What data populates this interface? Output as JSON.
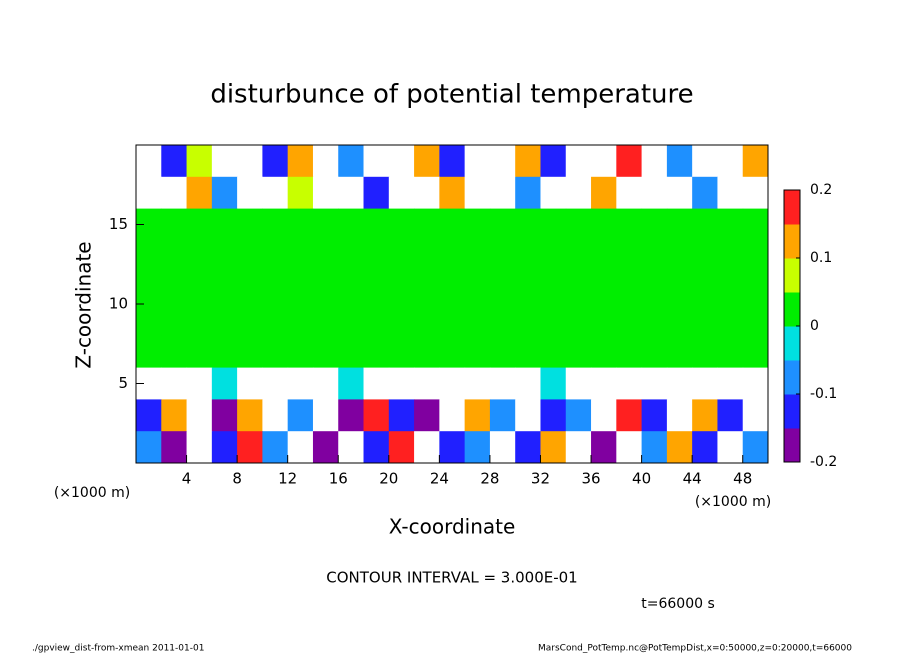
{
  "chart_data": {
    "type": "heatmap",
    "title": "disturbunce of potential temperature",
    "x_label": "X-coordinate",
    "y_label": "Z-coordinate",
    "x_unit": "(×1000 m)",
    "y_unit": "(×1000 m)",
    "xlim": [
      0,
      50
    ],
    "ylim": [
      0,
      20
    ],
    "xticks": [
      4,
      8,
      12,
      16,
      20,
      24,
      28,
      32,
      36,
      40,
      44,
      48
    ],
    "yticks": [
      5,
      10,
      15
    ],
    "x": [
      1,
      3,
      5,
      7,
      9,
      11,
      13,
      15,
      17,
      19,
      21,
      23,
      25,
      27,
      29,
      31,
      33,
      35,
      37,
      39,
      41,
      43,
      45,
      47,
      49
    ],
    "y": [
      19,
      17,
      15,
      13,
      11,
      9,
      7,
      5,
      3,
      1
    ],
    "z": [
      [
        0.3,
        -0.12,
        0.08,
        0.3,
        0.3,
        -0.15,
        0.12,
        0.3,
        -0.1,
        0.3,
        0.3,
        0.15,
        -0.12,
        0.3,
        0.3,
        0.1,
        -0.15,
        0.3,
        0.3,
        0.2,
        0.3,
        -0.1,
        0.3,
        0.3,
        0.12
      ],
      [
        0.3,
        0.3,
        0.15,
        -0.1,
        0.3,
        0.3,
        0.05,
        0.3,
        0.3,
        -0.12,
        0.3,
        0.3,
        0.1,
        0.3,
        0.3,
        -0.08,
        0.3,
        0.3,
        0.12,
        0.3,
        0.3,
        0.3,
        -0.1,
        0.3,
        0.3
      ],
      [
        0,
        0,
        0,
        0,
        0,
        0,
        0,
        0,
        0,
        0,
        0,
        0,
        0,
        0,
        0,
        0,
        0,
        0,
        0,
        0,
        0,
        0,
        0,
        0,
        0
      ],
      [
        0,
        0.01,
        0,
        0,
        0,
        0,
        0,
        0,
        0,
        0,
        0,
        0,
        0,
        0,
        0,
        0,
        0,
        0,
        0,
        0,
        0,
        0,
        0,
        0,
        0.01
      ],
      [
        0,
        0,
        0,
        0,
        0,
        0,
        0,
        0,
        0,
        0,
        0,
        0,
        0,
        0,
        0,
        0,
        0,
        0,
        0,
        0,
        0,
        0,
        0,
        0,
        0
      ],
      [
        0.01,
        0,
        0,
        0,
        0,
        0,
        0,
        0,
        0,
        0,
        0,
        0,
        0,
        0,
        0,
        0,
        0,
        0,
        0,
        0,
        0,
        0,
        0,
        0,
        0.01
      ],
      [
        0,
        0,
        0,
        0,
        0,
        0,
        0,
        0,
        0,
        0,
        0,
        0,
        0,
        0,
        0,
        0,
        0,
        0,
        0,
        0,
        0,
        0,
        0,
        0,
        0
      ],
      [
        0.3,
        0.3,
        0.3,
        -0.05,
        0.3,
        0.3,
        0.3,
        0.3,
        -0.05,
        0.3,
        0.3,
        0.3,
        0.3,
        0.3,
        0.3,
        0.3,
        -0.05,
        0.3,
        0.3,
        0.3,
        0.3,
        0.3,
        0.3,
        0.3,
        0.3
      ],
      [
        -0.15,
        0.15,
        0.3,
        -0.18,
        0.12,
        0.3,
        -0.1,
        0.3,
        -0.2,
        0.2,
        -0.12,
        -0.18,
        0.3,
        0.15,
        -0.08,
        0.3,
        -0.15,
        -0.1,
        0.3,
        0.18,
        -0.12,
        0.3,
        0.12,
        -0.15,
        0.3
      ],
      [
        -0.1,
        -0.18,
        0.3,
        -0.12,
        0.2,
        -0.08,
        0.3,
        -0.2,
        0.3,
        -0.15,
        0.18,
        0.3,
        -0.12,
        -0.1,
        0.3,
        -0.15,
        0.12,
        0.3,
        -0.18,
        0.3,
        -0.1,
        0.15,
        -0.12,
        0.3,
        -0.08
      ]
    ],
    "zlim": [
      -0.2,
      0.2
    ],
    "zticks": [
      -0.2,
      -0.1,
      0,
      0.1,
      0.2
    ],
    "colors": [
      "#8000a0",
      "#2020ff",
      "#1e90ff",
      "#00e0e0",
      "#00ee00",
      "#c8ff00",
      "#ffa500",
      "#ff2020"
    ],
    "contour_interval": "CONTOUR INTERVAL = 3.000E-01",
    "time_label": "t=66000 s",
    "footer_left": "./gpview_dist-from-xmean  2011-01-01",
    "footer_right": "MarsCond_PotTemp.nc@PotTempDist,x=0:50000,z=0:20000,t=66000"
  }
}
